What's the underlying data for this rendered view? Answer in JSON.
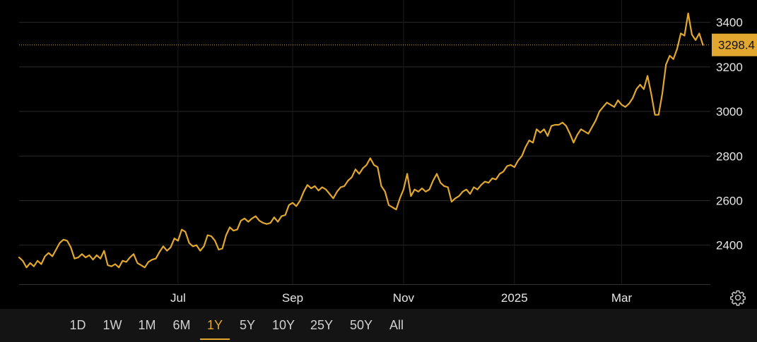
{
  "chart_data": {
    "type": "line",
    "series": [
      {
        "values": [
          [
            0,
            2345
          ],
          [
            2,
            2330
          ],
          [
            4,
            2300
          ],
          [
            6,
            2320
          ],
          [
            8,
            2305
          ],
          [
            10,
            2330
          ],
          [
            12,
            2315
          ],
          [
            14,
            2350
          ],
          [
            16,
            2365
          ],
          [
            18,
            2350
          ],
          [
            20,
            2380
          ],
          [
            22,
            2410
          ],
          [
            24,
            2425
          ],
          [
            26,
            2420
          ],
          [
            28,
            2390
          ],
          [
            30,
            2340
          ],
          [
            32,
            2345
          ],
          [
            34,
            2360
          ],
          [
            36,
            2345
          ],
          [
            38,
            2355
          ],
          [
            40,
            2335
          ],
          [
            42,
            2355
          ],
          [
            44,
            2340
          ],
          [
            46,
            2375
          ],
          [
            48,
            2310
          ],
          [
            50,
            2305
          ],
          [
            52,
            2315
          ],
          [
            54,
            2300
          ],
          [
            56,
            2330
          ],
          [
            58,
            2325
          ],
          [
            60,
            2345
          ],
          [
            62,
            2360
          ],
          [
            64,
            2320
          ],
          [
            66,
            2310
          ],
          [
            68,
            2300
          ],
          [
            70,
            2325
          ],
          [
            72,
            2335
          ],
          [
            74,
            2340
          ],
          [
            76,
            2370
          ],
          [
            78,
            2395
          ],
          [
            80,
            2375
          ],
          [
            82,
            2390
          ],
          [
            84,
            2430
          ],
          [
            86,
            2420
          ],
          [
            88,
            2470
          ],
          [
            90,
            2460
          ],
          [
            92,
            2410
          ],
          [
            94,
            2395
          ],
          [
            96,
            2400
          ],
          [
            98,
            2375
          ],
          [
            100,
            2395
          ],
          [
            102,
            2445
          ],
          [
            104,
            2440
          ],
          [
            106,
            2420
          ],
          [
            108,
            2380
          ],
          [
            110,
            2385
          ],
          [
            112,
            2445
          ],
          [
            114,
            2480
          ],
          [
            116,
            2465
          ],
          [
            118,
            2470
          ],
          [
            120,
            2510
          ],
          [
            122,
            2520
          ],
          [
            124,
            2505
          ],
          [
            126,
            2520
          ],
          [
            128,
            2530
          ],
          [
            130,
            2510
          ],
          [
            132,
            2500
          ],
          [
            134,
            2495
          ],
          [
            136,
            2500
          ],
          [
            138,
            2525
          ],
          [
            140,
            2505
          ],
          [
            142,
            2530
          ],
          [
            144,
            2535
          ],
          [
            146,
            2580
          ],
          [
            148,
            2590
          ],
          [
            150,
            2575
          ],
          [
            152,
            2600
          ],
          [
            154,
            2640
          ],
          [
            156,
            2670
          ],
          [
            158,
            2655
          ],
          [
            160,
            2665
          ],
          [
            162,
            2645
          ],
          [
            164,
            2660
          ],
          [
            166,
            2650
          ],
          [
            168,
            2630
          ],
          [
            170,
            2610
          ],
          [
            172,
            2640
          ],
          [
            174,
            2660
          ],
          [
            176,
            2665
          ],
          [
            178,
            2690
          ],
          [
            180,
            2705
          ],
          [
            182,
            2740
          ],
          [
            184,
            2720
          ],
          [
            186,
            2745
          ],
          [
            188,
            2760
          ],
          [
            190,
            2790
          ],
          [
            192,
            2760
          ],
          [
            194,
            2750
          ],
          [
            196,
            2665
          ],
          [
            198,
            2640
          ],
          [
            200,
            2580
          ],
          [
            202,
            2570
          ],
          [
            204,
            2560
          ],
          [
            206,
            2610
          ],
          [
            208,
            2650
          ],
          [
            210,
            2720
          ],
          [
            212,
            2620
          ],
          [
            214,
            2650
          ],
          [
            216,
            2640
          ],
          [
            218,
            2655
          ],
          [
            220,
            2640
          ],
          [
            222,
            2650
          ],
          [
            224,
            2690
          ],
          [
            226,
            2720
          ],
          [
            228,
            2680
          ],
          [
            230,
            2665
          ],
          [
            232,
            2660
          ],
          [
            234,
            2595
          ],
          [
            236,
            2610
          ],
          [
            238,
            2620
          ],
          [
            240,
            2640
          ],
          [
            242,
            2650
          ],
          [
            244,
            2630
          ],
          [
            246,
            2660
          ],
          [
            248,
            2650
          ],
          [
            250,
            2670
          ],
          [
            252,
            2685
          ],
          [
            254,
            2680
          ],
          [
            256,
            2700
          ],
          [
            258,
            2695
          ],
          [
            260,
            2720
          ],
          [
            262,
            2730
          ],
          [
            264,
            2755
          ],
          [
            266,
            2760
          ],
          [
            268,
            2750
          ],
          [
            270,
            2780
          ],
          [
            272,
            2800
          ],
          [
            274,
            2840
          ],
          [
            276,
            2870
          ],
          [
            278,
            2860
          ],
          [
            280,
            2920
          ],
          [
            282,
            2905
          ],
          [
            284,
            2920
          ],
          [
            286,
            2890
          ],
          [
            288,
            2935
          ],
          [
            290,
            2940
          ],
          [
            292,
            2940
          ],
          [
            294,
            2950
          ],
          [
            296,
            2935
          ],
          [
            298,
            2900
          ],
          [
            300,
            2860
          ],
          [
            302,
            2895
          ],
          [
            304,
            2920
          ],
          [
            306,
            2910
          ],
          [
            308,
            2900
          ],
          [
            310,
            2930
          ],
          [
            312,
            2960
          ],
          [
            314,
            3000
          ],
          [
            316,
            3020
          ],
          [
            318,
            3040
          ],
          [
            320,
            3030
          ],
          [
            322,
            3020
          ],
          [
            324,
            3050
          ],
          [
            326,
            3030
          ],
          [
            328,
            3020
          ],
          [
            330,
            3035
          ],
          [
            332,
            3060
          ],
          [
            334,
            3100
          ],
          [
            336,
            3120
          ],
          [
            338,
            3100
          ],
          [
            340,
            3160
          ],
          [
            342,
            3080
          ],
          [
            344,
            2985
          ],
          [
            346,
            2985
          ],
          [
            348,
            3080
          ],
          [
            350,
            3210
          ],
          [
            352,
            3250
          ],
          [
            354,
            3235
          ],
          [
            356,
            3280
          ],
          [
            358,
            3350
          ],
          [
            360,
            3340
          ],
          [
            362,
            3440
          ],
          [
            364,
            3345
          ],
          [
            366,
            3320
          ],
          [
            368,
            3350
          ],
          [
            370,
            3298.4
          ]
        ]
      }
    ],
    "xticks": [
      "Jul",
      "Sep",
      "Nov",
      "2025",
      "Mar"
    ],
    "xtick_positions": [
      86,
      148,
      208,
      268,
      326
    ],
    "xlim": [
      0,
      374
    ],
    "yticks": [
      "2400",
      "2600",
      "2800",
      "3000",
      "3200",
      "3400"
    ],
    "ytick_values": [
      2400,
      2600,
      2800,
      3000,
      3200,
      3400
    ],
    "ylim": [
      2225,
      3500
    ],
    "last_value": 3298.4,
    "last_value_label": "3298.4",
    "grid": true,
    "colors": {
      "line": "#e2a72e",
      "grid": "#2a2a2a",
      "background": "#000000",
      "tag": "#e2a72e"
    }
  },
  "range_buttons": [
    "1D",
    "1W",
    "1M",
    "6M",
    "1Y",
    "5Y",
    "10Y",
    "25Y",
    "50Y",
    "All"
  ],
  "active_range": "1Y",
  "settings_icon": "gear-icon"
}
